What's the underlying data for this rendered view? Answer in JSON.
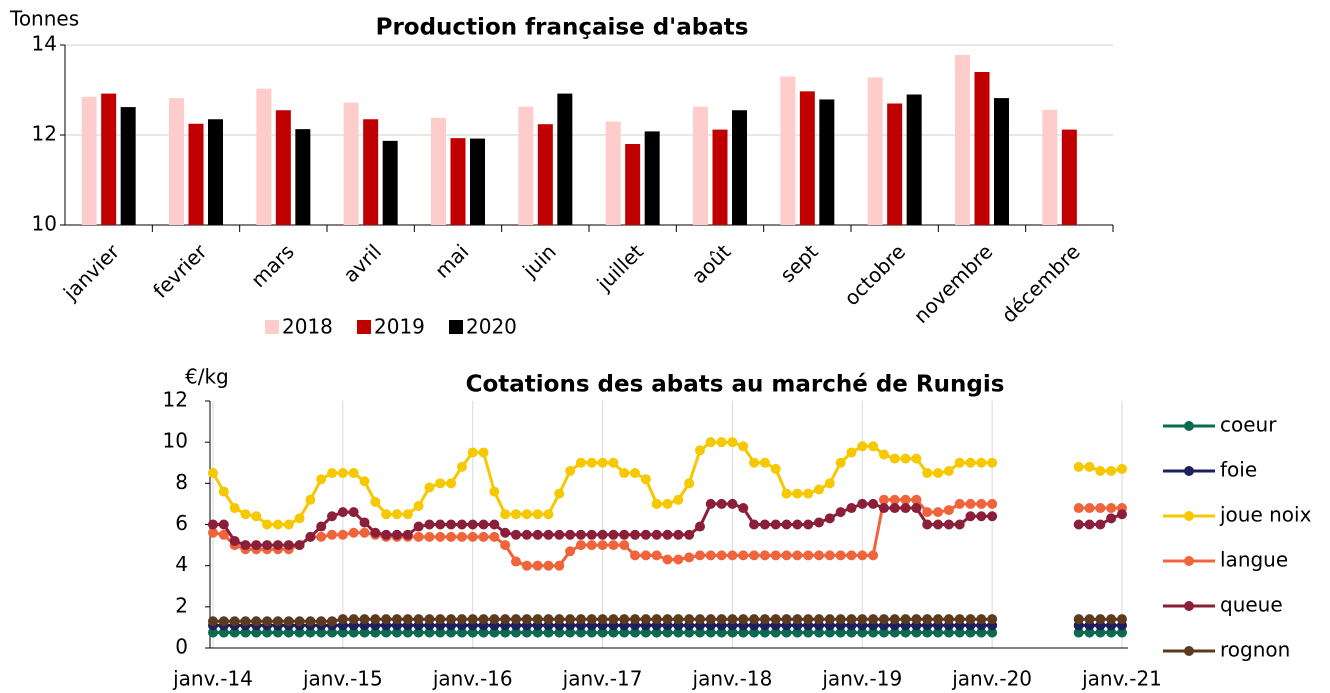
{
  "chart_data": [
    {
      "type": "bar",
      "title": "Production française d'abats",
      "y_label": "Tonnes",
      "categories": [
        "janvier",
        "fevrier",
        "mars",
        "avril",
        "mai",
        "juin",
        "juillet",
        "août",
        "sept",
        "octobre",
        "novembre",
        "décembre"
      ],
      "series": [
        {
          "name": "2018",
          "color": "#ffcccc",
          "values": [
            12.85,
            12.82,
            13.03,
            12.72,
            12.38,
            12.63,
            12.3,
            12.63,
            13.3,
            13.28,
            13.78,
            12.56
          ]
        },
        {
          "name": "2019",
          "color": "#c00000",
          "values": [
            12.92,
            12.25,
            12.55,
            12.35,
            11.93,
            12.24,
            11.8,
            12.12,
            12.97,
            12.7,
            13.4,
            12.12
          ]
        },
        {
          "name": "2020",
          "color": "#000000",
          "values": [
            12.62,
            12.35,
            12.13,
            11.87,
            11.92,
            12.92,
            12.08,
            12.55,
            12.79,
            12.9,
            12.82,
            null
          ]
        }
      ],
      "ylim": [
        10,
        14
      ],
      "yticks": [
        10,
        12,
        14
      ],
      "grid": "y",
      "legend": "bottom"
    },
    {
      "type": "line",
      "title": "Cotations des abats au marché de Rungis",
      "y_label": "€/kg",
      "categories": [
        "janv.-14",
        null,
        null,
        null,
        null,
        null,
        null,
        null,
        null,
        null,
        null,
        null,
        "janv.-15",
        null,
        null,
        null,
        null,
        null,
        null,
        null,
        null,
        null,
        null,
        null,
        "janv.-16",
        null,
        null,
        null,
        null,
        null,
        null,
        null,
        null,
        null,
        null,
        null,
        "janv.-17",
        null,
        null,
        null,
        null,
        null,
        null,
        null,
        null,
        null,
        null,
        null,
        "janv.-18",
        null,
        null,
        null,
        null,
        null,
        null,
        null,
        null,
        null,
        null,
        null,
        "janv.-19",
        null,
        null,
        null,
        null,
        null,
        null,
        null,
        null,
        null,
        null,
        null,
        "janv.-20",
        null,
        null,
        null,
        null,
        null,
        null,
        null,
        null,
        null,
        null,
        null,
        "janv.-21"
      ],
      "series": [
        {
          "name": "coeur",
          "color": "#0b6b50",
          "values": [
            0.75,
            0.75,
            0.75,
            0.75,
            0.75,
            0.75,
            0.75,
            0.75,
            0.75,
            0.75,
            0.75,
            0.75,
            0.75,
            0.75,
            0.75,
            0.75,
            0.75,
            0.75,
            0.75,
            0.75,
            0.75,
            0.75,
            0.75,
            0.75,
            0.75,
            0.75,
            0.75,
            0.75,
            0.75,
            0.75,
            0.75,
            0.75,
            0.75,
            0.75,
            0.75,
            0.75,
            0.75,
            0.75,
            0.75,
            0.75,
            0.75,
            0.75,
            0.75,
            0.75,
            0.75,
            0.75,
            0.75,
            0.75,
            0.75,
            0.75,
            0.75,
            0.75,
            0.75,
            0.75,
            0.75,
            0.75,
            0.75,
            0.75,
            0.75,
            0.75,
            0.75,
            0.75,
            0.75,
            0.75,
            0.75,
            0.75,
            0.75,
            0.75,
            0.75,
            0.75,
            0.75,
            0.75,
            0.75,
            null,
            null,
            null,
            null,
            null,
            null,
            null,
            0.75,
            0.75,
            0.75,
            0.75,
            0.75
          ]
        },
        {
          "name": "foie",
          "color": "#1f1f5e",
          "values": [
            1.1,
            1.1,
            1.1,
            1.1,
            1.1,
            1.1,
            1.1,
            1.1,
            1.1,
            1.1,
            1.1,
            1.1,
            1.1,
            1.1,
            1.1,
            1.1,
            1.1,
            1.1,
            1.1,
            1.1,
            1.1,
            1.1,
            1.1,
            1.1,
            1.1,
            1.1,
            1.1,
            1.1,
            1.1,
            1.1,
            1.1,
            1.1,
            1.1,
            1.1,
            1.1,
            1.1,
            1.1,
            1.1,
            1.1,
            1.1,
            1.1,
            1.1,
            1.1,
            1.1,
            1.1,
            1.1,
            1.1,
            1.1,
            1.1,
            1.1,
            1.1,
            1.1,
            1.1,
            1.1,
            1.1,
            1.1,
            1.1,
            1.1,
            1.1,
            1.1,
            1.1,
            1.1,
            1.1,
            1.1,
            1.1,
            1.1,
            1.1,
            1.1,
            1.1,
            1.1,
            1.1,
            1.1,
            1.1,
            null,
            null,
            null,
            null,
            null,
            null,
            null,
            1.1,
            1.1,
            1.1,
            1.1,
            1.1
          ]
        },
        {
          "name": "joue noix",
          "color": "#f5c800",
          "values": [
            8.5,
            7.6,
            6.8,
            6.5,
            6.4,
            6.0,
            6.0,
            6.0,
            6.3,
            7.2,
            8.2,
            8.5,
            8.5,
            8.5,
            8.1,
            7.1,
            6.5,
            6.5,
            6.5,
            6.9,
            7.8,
            8.0,
            8.0,
            8.8,
            9.5,
            9.5,
            7.6,
            6.5,
            6.5,
            6.5,
            6.5,
            6.5,
            7.5,
            8.6,
            9.0,
            9.0,
            9.0,
            9.0,
            8.5,
            8.5,
            8.2,
            7.0,
            7.0,
            7.2,
            8.0,
            9.6,
            10.0,
            10.0,
            10.0,
            9.8,
            9.0,
            9.0,
            8.7,
            7.5,
            7.5,
            7.5,
            7.7,
            8.0,
            9.0,
            9.5,
            9.8,
            9.8,
            9.4,
            9.2,
            9.2,
            9.2,
            8.5,
            8.5,
            8.6,
            9.0,
            9.0,
            9.0,
            9.0,
            null,
            null,
            null,
            null,
            null,
            null,
            null,
            8.8,
            8.8,
            8.6,
            8.6,
            8.7
          ]
        },
        {
          "name": "langue",
          "color": "#f0643c",
          "values": [
            5.6,
            5.5,
            5.0,
            4.8,
            4.8,
            4.8,
            4.8,
            4.8,
            5.0,
            5.4,
            5.4,
            5.5,
            5.5,
            5.6,
            5.6,
            5.5,
            5.4,
            5.4,
            5.4,
            5.4,
            5.4,
            5.4,
            5.4,
            5.4,
            5.4,
            5.4,
            5.4,
            5.0,
            4.2,
            4.0,
            4.0,
            4.0,
            4.0,
            4.7,
            5.0,
            5.0,
            5.0,
            5.0,
            5.0,
            4.5,
            4.5,
            4.5,
            4.3,
            4.3,
            4.4,
            4.5,
            4.5,
            4.5,
            4.5,
            4.5,
            4.5,
            4.5,
            4.5,
            4.5,
            4.5,
            4.5,
            4.5,
            4.5,
            4.5,
            4.5,
            4.5,
            4.5,
            7.2,
            7.2,
            7.2,
            7.2,
            6.6,
            6.6,
            6.7,
            7.0,
            7.0,
            7.0,
            7.0,
            null,
            null,
            null,
            null,
            null,
            null,
            null,
            6.8,
            6.8,
            6.8,
            6.8,
            6.8
          ]
        },
        {
          "name": "queue",
          "color": "#8b1f3a",
          "values": [
            6.0,
            6.0,
            5.2,
            5.0,
            5.0,
            5.0,
            5.0,
            5.0,
            5.0,
            5.4,
            5.9,
            6.4,
            6.6,
            6.6,
            6.1,
            5.6,
            5.5,
            5.5,
            5.5,
            5.9,
            6.0,
            6.0,
            6.0,
            6.0,
            6.0,
            6.0,
            6.0,
            5.6,
            5.5,
            5.5,
            5.5,
            5.5,
            5.5,
            5.5,
            5.5,
            5.5,
            5.5,
            5.5,
            5.5,
            5.5,
            5.5,
            5.5,
            5.5,
            5.5,
            5.5,
            5.9,
            7.0,
            7.0,
            7.0,
            6.8,
            6.0,
            6.0,
            6.0,
            6.0,
            6.0,
            6.0,
            6.1,
            6.3,
            6.6,
            6.8,
            7.0,
            7.0,
            6.8,
            6.8,
            6.8,
            6.8,
            6.0,
            6.0,
            6.0,
            6.0,
            6.4,
            6.4,
            6.4,
            null,
            null,
            null,
            null,
            null,
            null,
            null,
            6.0,
            6.0,
            6.0,
            6.3,
            6.5
          ]
        },
        {
          "name": "rognon",
          "color": "#5b3a1e",
          "values": [
            1.3,
            1.3,
            1.3,
            1.3,
            1.3,
            1.3,
            1.3,
            1.3,
            1.3,
            1.3,
            1.3,
            1.3,
            1.4,
            1.4,
            1.4,
            1.4,
            1.4,
            1.4,
            1.4,
            1.4,
            1.4,
            1.4,
            1.4,
            1.4,
            1.4,
            1.4,
            1.4,
            1.4,
            1.4,
            1.4,
            1.4,
            1.4,
            1.4,
            1.4,
            1.4,
            1.4,
            1.4,
            1.4,
            1.4,
            1.4,
            1.4,
            1.4,
            1.4,
            1.4,
            1.4,
            1.4,
            1.4,
            1.4,
            1.4,
            1.4,
            1.4,
            1.4,
            1.4,
            1.4,
            1.4,
            1.4,
            1.4,
            1.4,
            1.4,
            1.4,
            1.4,
            1.4,
            1.4,
            1.4,
            1.4,
            1.4,
            1.4,
            1.4,
            1.4,
            1.4,
            1.4,
            1.4,
            1.4,
            null,
            null,
            null,
            null,
            null,
            null,
            null,
            1.4,
            1.4,
            1.4,
            1.4,
            1.4
          ]
        }
      ],
      "ylim": [
        0,
        12
      ],
      "yticks": [
        0,
        2,
        4,
        6,
        8,
        10,
        12
      ],
      "grid": "x",
      "legend": "right"
    }
  ]
}
